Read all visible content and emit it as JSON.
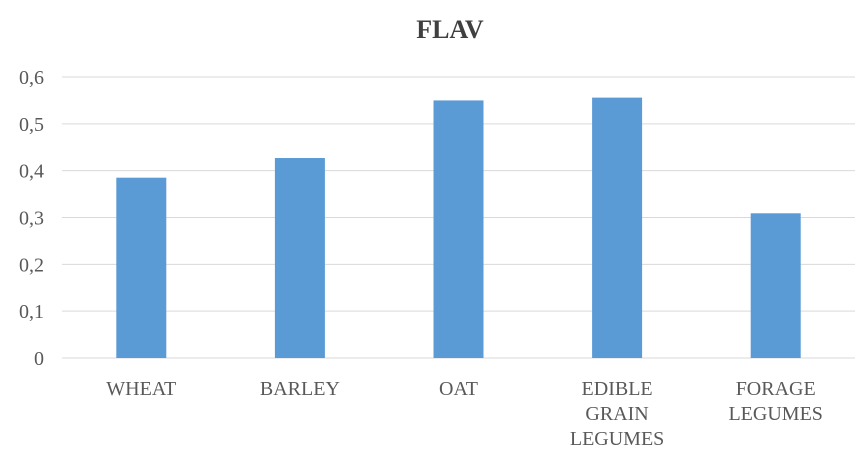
{
  "chart_data": {
    "type": "bar",
    "title": "FLAV",
    "categories": [
      [
        "WHEAT"
      ],
      [
        "BARLEY"
      ],
      [
        "OAT"
      ],
      [
        "EDIBLE",
        "GRAIN",
        "LEGUMES"
      ],
      [
        "FORAGE",
        "LEGUMES"
      ]
    ],
    "values": [
      0.385,
      0.427,
      0.55,
      0.556,
      0.309
    ],
    "ylim": [
      0,
      0.6
    ],
    "yticks": [
      "0",
      "0,1",
      "0,2",
      "0,3",
      "0,4",
      "0,5",
      "0,6"
    ],
    "grid": true,
    "legend": "none",
    "colors": {
      "bar": "#5b9bd5"
    }
  }
}
